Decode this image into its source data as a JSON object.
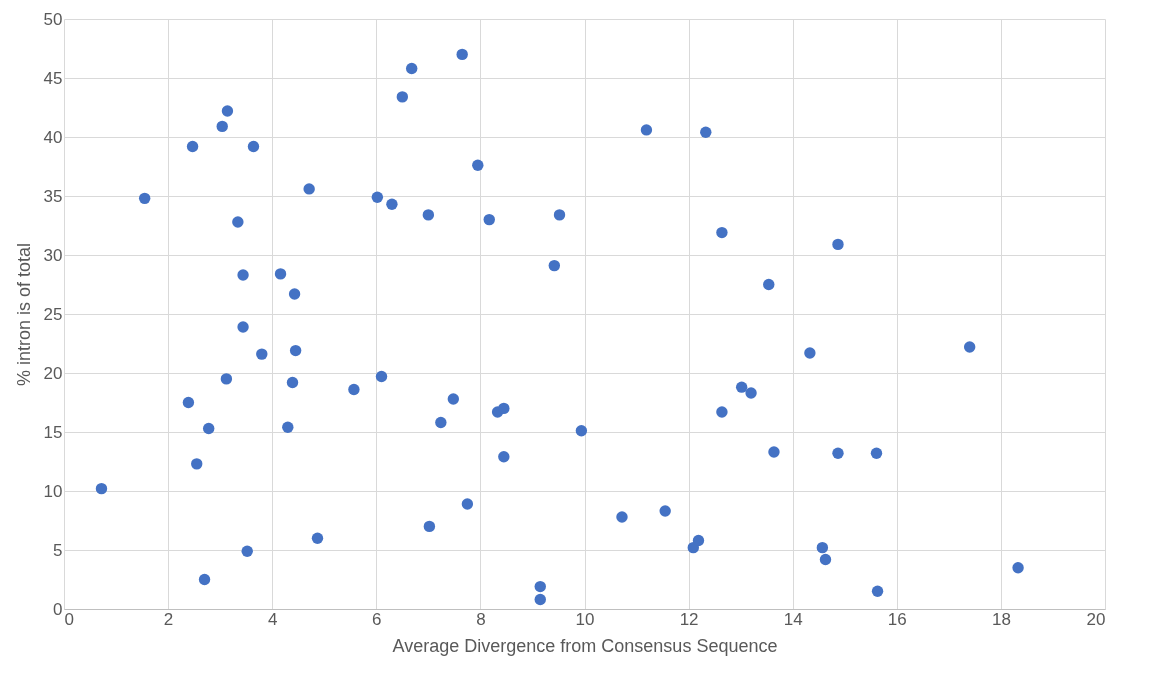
{
  "chart_data": {
    "type": "scatter",
    "xlabel": "Average Divergence from Consensus Sequence",
    "ylabel": "% intron is of total",
    "x": [
      0.72,
      1.55,
      2.39,
      2.47,
      2.55,
      2.7,
      2.78,
      3.04,
      3.14,
      3.12,
      3.34,
      3.44,
      3.44,
      3.52,
      3.64,
      3.8,
      4.16,
      4.3,
      4.39,
      4.43,
      4.45,
      4.71,
      4.87,
      5.57,
      6.02,
      6.1,
      6.3,
      6.5,
      6.68,
      7.0,
      7.02,
      7.24,
      7.48,
      7.65,
      7.75,
      7.95,
      8.17,
      8.33,
      8.45,
      8.45,
      9.15,
      9.15,
      9.42,
      9.52,
      9.94,
      10.72,
      11.19,
      11.55,
      12.09,
      12.19,
      12.33,
      12.64,
      12.64,
      13.02,
      13.2,
      13.54,
      13.64,
      14.33,
      14.57,
      14.63,
      14.87,
      14.87,
      15.61,
      15.63,
      17.4,
      18.33
    ],
    "series": [
      {
        "color": "#4472c4",
        "values": [
          10.2,
          34.8,
          17.5,
          39.2,
          12.3,
          2.5,
          15.3,
          40.9,
          42.2,
          19.5,
          32.8,
          28.3,
          23.9,
          4.9,
          39.2,
          21.6,
          28.4,
          15.4,
          19.2,
          26.7,
          21.9,
          35.6,
          6.0,
          18.6,
          34.9,
          19.7,
          34.3,
          43.4,
          45.8,
          33.4,
          7.0,
          15.8,
          17.8,
          47.0,
          8.9,
          37.6,
          33.0,
          16.7,
          17.0,
          12.9,
          1.9,
          0.8,
          29.1,
          33.4,
          15.1,
          7.8,
          40.6,
          8.3,
          5.2,
          5.8,
          40.4,
          31.9,
          16.7,
          18.8,
          18.3,
          27.5,
          13.3,
          21.7,
          5.2,
          4.2,
          30.9,
          13.2,
          13.2,
          1.5,
          22.2,
          3.5
        ]
      }
    ],
    "xlim": [
      0,
      20
    ],
    "xticks": [
      0,
      2,
      4,
      6,
      8,
      10,
      12,
      14,
      16,
      18,
      20
    ],
    "ylim": [
      0,
      50
    ],
    "yticks": [
      0,
      5,
      10,
      15,
      20,
      25,
      30,
      35,
      40,
      45,
      50
    ],
    "grid": true,
    "marker": "circle"
  }
}
